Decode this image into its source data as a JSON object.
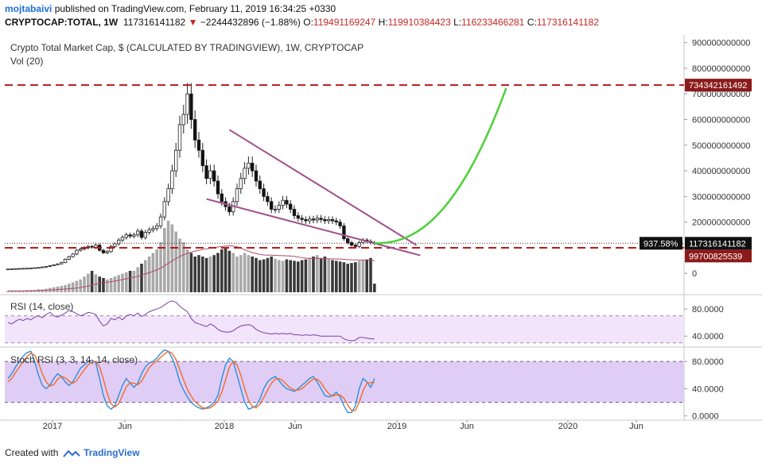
{
  "header": {
    "author": "mojtabaivi",
    "published_text": "published on TradingView.com, February 11, 2019 16:34:25 +0330",
    "symbol": "CRYPTOCAP:TOTAL, 1W",
    "last_value": "117316141182",
    "change": "−2244432896 (−1.88%)",
    "o_label": "O:",
    "o_value": "119491169247",
    "h_label": "H:",
    "h_value": "119910384423",
    "l_label": "L:",
    "l_value": "116233466281",
    "c_label": "C:",
    "c_value": "117316141182"
  },
  "legend": {
    "title": "Crypto Total Market Cap, $ (CALCULATED BY TRADINGVIEW), 1W, CRYPTOCAP",
    "volume": "Vol (20)",
    "rsi": "RSI (14, close)",
    "stoch": "Stoch RSI (3, 3, 14, 14, close)"
  },
  "footer": {
    "created_with": "Created with",
    "brand": "TradingView"
  },
  "colors": {
    "up_candle": "#ffffff",
    "down_candle": "#111111",
    "volume_up": "#a9a9a9",
    "volume_down": "#3a3a3a",
    "resistance_line": "#b71c1c",
    "wedge_line": "#a0508a",
    "projection": "#4cd137",
    "rsi_line": "#7b3fa8",
    "rsi_band": "#f1e4fb",
    "stoch_band": "#e0cdf5",
    "stoch_k": "#2f8fd8",
    "stoch_d": "#f06b2b",
    "label_bg": "#8b1a1a",
    "current_label_bg": "#111111"
  },
  "chart_data": [
    {
      "type": "candlestick",
      "title": "Crypto Total Market Cap, $ (CALCULATED BY TRADINGVIEW), 1W, CRYPTOCAP",
      "x_ticks": [
        "2017",
        "Jun",
        "2018",
        "Jun",
        "2019",
        "Jun",
        "2020",
        "Jun"
      ],
      "y_ticks": [
        "900000000000",
        "800000000000",
        "700000000000",
        "600000000000",
        "500000000000",
        "400000000000",
        "300000000000",
        "200000000000",
        "100000000000",
        "0"
      ],
      "ylim": [
        -80000000000,
        930000000000
      ],
      "price_labels": [
        {
          "text": "734342161492",
          "value": 734342161492
        },
        {
          "text": "117316141182",
          "value": 117316141182
        },
        {
          "text": "99700825539",
          "value": 99700825539
        }
      ],
      "current_percent_label": "937.58%",
      "horizontal_levels": [
        734342161492,
        99700825539
      ],
      "last_close": 117316141182,
      "closes_approx": [
        17000000000,
        18000000000,
        18500000000,
        19000000000,
        19500000000,
        20000000000,
        21000000000,
        22000000000,
        23000000000,
        25000000000,
        27000000000,
        30000000000,
        33000000000,
        37000000000,
        42000000000,
        55000000000,
        65000000000,
        75000000000,
        90000000000,
        95000000000,
        100000000000,
        105000000000,
        102000000000,
        110000000000,
        90000000000,
        80000000000,
        85000000000,
        105000000000,
        115000000000,
        130000000000,
        140000000000,
        150000000000,
        145000000000,
        150000000000,
        165000000000,
        140000000000,
        160000000000,
        170000000000,
        175000000000,
        185000000000,
        220000000000,
        280000000000,
        330000000000,
        400000000000,
        480000000000,
        580000000000,
        620000000000,
        700000000000,
        600000000000,
        520000000000,
        480000000000,
        420000000000,
        370000000000,
        400000000000,
        360000000000,
        310000000000,
        280000000000,
        260000000000,
        240000000000,
        280000000000,
        330000000000,
        370000000000,
        410000000000,
        430000000000,
        400000000000,
        360000000000,
        330000000000,
        300000000000,
        280000000000,
        250000000000,
        250000000000,
        265000000000,
        285000000000,
        270000000000,
        250000000000,
        225000000000,
        215000000000,
        210000000000,
        205000000000,
        212000000000,
        208000000000,
        215000000000,
        210000000000,
        205000000000,
        210000000000,
        205000000000,
        200000000000,
        185000000000,
        135000000000,
        120000000000,
        110000000000,
        105000000000,
        120000000000,
        130000000000,
        125000000000,
        120000000000,
        117316141182
      ],
      "projection_label": "hand-drawn upward projection to ~734342161492 by mid-2019"
    },
    {
      "type": "bar",
      "name": "Vol (20)",
      "values_relative": [
        0.02,
        0.02,
        0.02,
        0.02,
        0.02,
        0.03,
        0.03,
        0.03,
        0.04,
        0.04,
        0.05,
        0.06,
        0.07,
        0.08,
        0.09,
        0.1,
        0.12,
        0.14,
        0.16,
        0.18,
        0.22,
        0.26,
        0.3,
        0.25,
        0.22,
        0.2,
        0.18,
        0.2,
        0.22,
        0.24,
        0.26,
        0.28,
        0.3,
        0.3,
        0.35,
        0.4,
        0.45,
        0.5,
        0.55,
        0.6,
        0.7,
        0.9,
        1.0,
        0.95,
        0.85,
        0.75,
        0.7,
        0.6,
        0.55,
        0.5,
        0.52,
        0.5,
        0.48,
        0.5,
        0.52,
        0.55,
        0.6,
        0.62,
        0.58,
        0.55,
        0.5,
        0.52,
        0.55,
        0.52,
        0.5,
        0.48,
        0.45,
        0.46,
        0.48,
        0.5,
        0.47,
        0.45,
        0.44,
        0.46,
        0.45,
        0.44,
        0.43,
        0.45,
        0.46,
        0.48,
        0.5,
        0.52,
        0.48,
        0.5,
        0.47,
        0.45,
        0.44,
        0.43,
        0.42,
        0.4,
        0.41,
        0.42,
        0.44,
        0.45,
        0.46,
        0.48,
        0.12
      ]
    },
    {
      "type": "line",
      "name": "RSI (14, close)",
      "y_ticks": [
        "80.0000",
        "40.0000"
      ],
      "ylim": [
        25,
        100
      ],
      "band": [
        30,
        70
      ],
      "values": [
        60,
        58,
        62,
        65,
        63,
        66,
        64,
        68,
        70,
        67,
        72,
        75,
        70,
        68,
        71,
        74,
        78,
        76,
        73,
        70,
        72,
        75,
        74,
        72,
        62,
        55,
        58,
        66,
        64,
        68,
        64,
        70,
        72,
        70,
        74,
        69,
        72,
        76,
        78,
        80,
        82,
        86,
        90,
        92,
        90,
        84,
        80,
        76,
        66,
        60,
        58,
        56,
        54,
        58,
        55,
        50,
        47,
        46,
        46,
        48,
        52,
        55,
        56,
        57,
        55,
        50,
        47,
        45,
        44,
        43,
        44,
        43,
        44,
        43,
        44,
        42,
        42,
        41,
        42,
        41,
        42,
        41,
        40,
        40,
        40,
        40,
        40,
        40,
        36,
        34,
        33,
        34,
        38,
        38,
        37,
        36,
        36
      ]
    },
    {
      "type": "line",
      "name": "Stoch RSI (3, 3, 14, 14, close)",
      "y_ticks": [
        "80.0000",
        "40.0000",
        "0.0000"
      ],
      "ylim": [
        -5,
        100
      ],
      "band": [
        20,
        80
      ],
      "series": [
        {
          "values": [
            55,
            62,
            72,
            80,
            88,
            93,
            95,
            80,
            60,
            45,
            40,
            45,
            55,
            62,
            58,
            50,
            45,
            50,
            60,
            70,
            75,
            80,
            82,
            78,
            55,
            30,
            15,
            10,
            15,
            30,
            45,
            55,
            48,
            42,
            48,
            62,
            72,
            78,
            80,
            85,
            92,
            97,
            95,
            85,
            70,
            50,
            38,
            28,
            20,
            15,
            12,
            10,
            12,
            15,
            20,
            30,
            55,
            75,
            85,
            80,
            60,
            40,
            20,
            10,
            12,
            15,
            25,
            40,
            50,
            55,
            58,
            52,
            45,
            40,
            38,
            36,
            40,
            45,
            50,
            55,
            58,
            50,
            40,
            30,
            28,
            30,
            35,
            28,
            15,
            5,
            5,
            15,
            40,
            55,
            50,
            42,
            55
          ]
        },
        {
          "values": [
            50,
            55,
            64,
            72,
            80,
            87,
            92,
            89,
            78,
            62,
            50,
            44,
            46,
            54,
            58,
            56,
            51,
            48,
            52,
            60,
            68,
            75,
            79,
            80,
            72,
            54,
            33,
            18,
            13,
            18,
            30,
            43,
            49,
            48,
            46,
            51,
            61,
            71,
            77,
            81,
            86,
            91,
            95,
            92,
            83,
            68,
            53,
            39,
            29,
            21,
            16,
            12,
            11,
            12,
            16,
            22,
            35,
            53,
            72,
            80,
            75,
            60,
            40,
            23,
            14,
            12,
            17,
            27,
            38,
            48,
            54,
            55,
            52,
            46,
            41,
            38,
            38,
            40,
            45,
            50,
            54,
            54,
            49,
            40,
            33,
            29,
            31,
            31,
            26,
            16,
            8,
            8,
            20,
            37,
            48,
            49,
            49
          ]
        }
      ]
    }
  ]
}
